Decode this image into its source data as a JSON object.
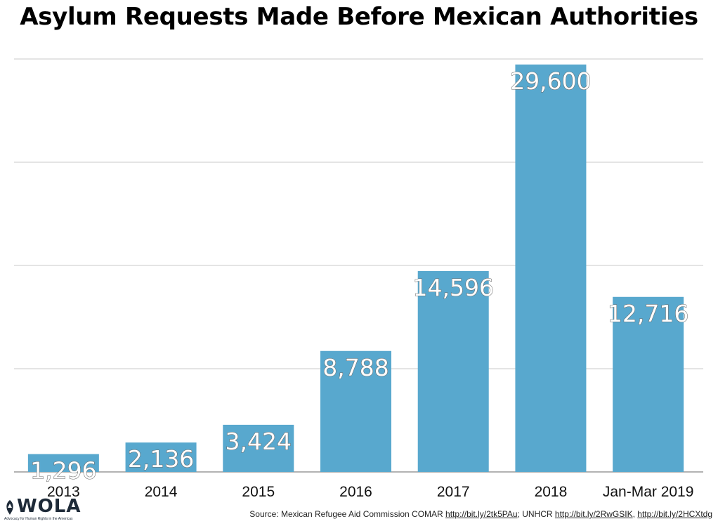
{
  "chart_data": {
    "type": "bar",
    "title": "Asylum Requests Made Before Mexican Authorities",
    "categories": [
      "2013",
      "2014",
      "2015",
      "2016",
      "2017",
      "2018",
      "Jan-Mar 2019"
    ],
    "values": [
      1296,
      2136,
      3424,
      8788,
      14596,
      29600,
      12716
    ],
    "value_labels": [
      "1,296",
      "2,136",
      "3,424",
      "8,788",
      "14,596",
      "29,600",
      "12,716"
    ],
    "xlabel": "",
    "ylabel": "",
    "ylim": [
      0,
      30000
    ],
    "grid": true,
    "legend": "none",
    "bar_color": "#58a8ce"
  },
  "logo": {
    "text": "WOLA",
    "tagline": "Advocacy for Human Rights in the Americas"
  },
  "source": {
    "prefix": "Source: Mexican Refugee Aid Commission COMAR ",
    "link1": "http://bit.ly/2tk5PAu",
    "mid": "; UNHCR ",
    "link2": "http://bit.ly/2RwGSIK",
    "sep": ", ",
    "link3": "http://bit.ly/2HCXtdg"
  }
}
